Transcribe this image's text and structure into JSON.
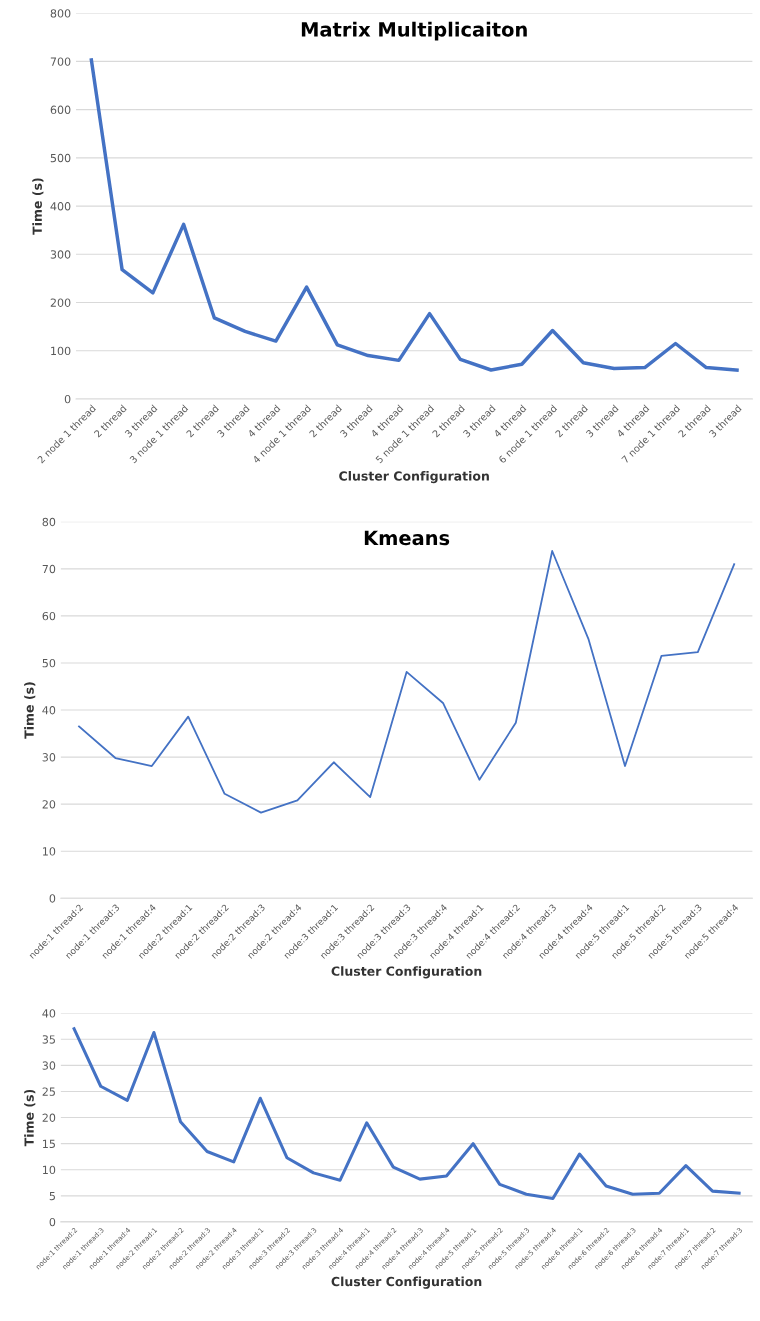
{
  "chart_data": [
    {
      "type": "line",
      "title": "Matrix Multiplicaiton",
      "xlabel": "Cluster Configuration",
      "ylabel": "Time (s)",
      "categories": [
        "2 node 1 thread",
        "2 thread",
        "3 thread",
        "3 node 1 thread",
        "2 thread",
        "3 thread",
        "4 thread",
        "4 node 1 thread",
        "2 thread",
        "3 thread",
        "4 thread",
        "5 node 1 thread",
        "2 thread",
        "3 thread",
        "4 thread",
        "6 node 1 thread",
        "2 thread",
        "3 thread",
        "4 thread",
        "7 node 1 thread",
        "2 thread",
        "3 thread"
      ],
      "series": [
        {
          "color": "#4472c4",
          "values": [
            703,
            268,
            220,
            362,
            168,
            140,
            120,
            232,
            112,
            90,
            80,
            177,
            82,
            60,
            72,
            142,
            75,
            63,
            65,
            115,
            65,
            60
          ]
        }
      ],
      "ylim": [
        0,
        800
      ],
      "yticks": [
        0,
        100,
        200,
        300,
        400,
        500,
        600,
        700,
        800
      ],
      "grid": "y"
    },
    {
      "type": "line",
      "title": "Kmeans",
      "xlabel": "Cluster Configuration",
      "ylabel": "Time (s)",
      "categories": [
        "node:1 thread:2",
        "node:1 thread:3",
        "node:1 thread:4",
        "node:2 thread:1",
        "node:2 thread:2",
        "node:2 thread:3",
        "node:2 thread:4",
        "node:3 thread:1",
        "node:3 thread:2",
        "node:3 thread:3",
        "node:3 thread:4",
        "node:4 thread:1",
        "node:4 thread:2",
        "node:4 thread:3",
        "node:4 thread:4",
        "node:5 thread:1",
        "node:5 thread:2",
        "node:5 thread:3",
        "node:5 thread:4"
      ],
      "series": [
        {
          "color": "#4472c4",
          "values": [
            36.5,
            29.8,
            28.1,
            38.6,
            22.2,
            18.2,
            20.8,
            28.9,
            21.5,
            48.1,
            41.5,
            25.2,
            37.3,
            73.8,
            55,
            28.1,
            51.5,
            52.3,
            71
          ]
        }
      ],
      "ylim": [
        0,
        80
      ],
      "yticks": [
        0,
        10,
        20,
        30,
        40,
        50,
        60,
        70,
        80
      ],
      "grid": "y"
    },
    {
      "type": "line",
      "xlabel": "Cluster Configuration",
      "ylabel": "Time (s)",
      "categories": [
        "node:1 thread:2",
        "node:1 thread:3",
        "node:1 thread:4",
        "node:2 thread:1",
        "node:2 thread:2",
        "node:2 thread:3",
        "node:2 thread:4",
        "node:3 thread:1",
        "node:3 thread:2",
        "node:3 thread:3",
        "node:3 thread:4",
        "node:4 thread:1",
        "node:4 thread:2",
        "node:4 thread:3",
        "node:4 thread:4",
        "node:5 thread:1",
        "node:5 thread:2",
        "node:5 thread:3",
        "node:5 thread:4",
        "node:6 thread:1",
        "node:6 thread:2",
        "node:6 thread:3",
        "node:6 thread:4",
        "node:7 thread:1",
        "node:7 thread:2",
        "node:7 thread:3"
      ],
      "series": [
        {
          "color": "#4472c4",
          "values": [
            37,
            26,
            23.3,
            36.3,
            19.2,
            13.5,
            11.5,
            23.7,
            12.3,
            9.4,
            8,
            19,
            10.5,
            8.2,
            8.8,
            15,
            7.2,
            5.3,
            4.5,
            13,
            6.9,
            5.3,
            5.5,
            10.8,
            5.9,
            5.5
          ]
        }
      ],
      "ylim": [
        0,
        40
      ],
      "yticks": [
        0,
        5,
        10,
        15,
        20,
        25,
        30,
        35,
        40
      ],
      "grid": "y"
    }
  ]
}
